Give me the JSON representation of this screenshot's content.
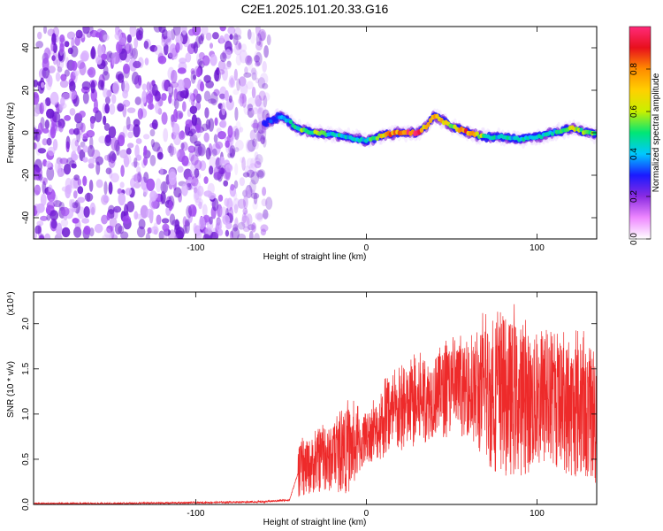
{
  "figure_title": "C2E1.2025.101.20.33.G16",
  "colors": {
    "snr_line": "#ee2a2a",
    "noise_purple": "#7a1fd6",
    "colormap": [
      "#ffffff",
      "#ee88ff",
      "#8a2be2",
      "#1a1aff",
      "#00c8ff",
      "#00e676",
      "#c8f000",
      "#ffd000",
      "#ff8c00",
      "#e8101c",
      "#ff2a7a"
    ]
  },
  "chart_data": [
    {
      "type": "heatmap",
      "title": "C2E1.2025.101.20.33.G16",
      "xlabel": "Height of straight line (km)",
      "ylabel": "Frequency (Hz)",
      "xlim": [
        -195,
        135
      ],
      "ylim": [
        -50,
        50
      ],
      "xticks": [
        -100,
        0,
        100
      ],
      "xtick_labels": [
        "-100",
        "0",
        "100"
      ],
      "yticks": [
        -40,
        -20,
        0,
        20,
        40
      ],
      "ytick_labels": [
        "-40",
        "-20",
        "0",
        "20",
        "40"
      ],
      "grid": false,
      "noise_region_x": [
        -195,
        -60
      ],
      "signal_ridge": {
        "x": [
          -60,
          -50,
          -40,
          -30,
          -20,
          -10,
          0,
          10,
          20,
          30,
          35,
          40,
          50,
          60,
          70,
          80,
          90,
          100,
          110,
          120,
          130,
          135
        ],
        "y": [
          4,
          8,
          2,
          0,
          -1,
          -2,
          -4,
          -1,
          0,
          0,
          3,
          8,
          3,
          0,
          -2,
          -2,
          -3,
          -2,
          0,
          2,
          0,
          -1
        ],
        "peak_normalized_amplitude": [
          0.3,
          0.4,
          0.55,
          0.6,
          0.5,
          0.45,
          0.45,
          0.7,
          0.95,
          0.95,
          0.7,
          0.8,
          0.65,
          0.9,
          0.5,
          0.45,
          0.5,
          0.45,
          0.5,
          0.6,
          0.65,
          0.55
        ]
      },
      "colorbar": {
        "label": "Normalized spectral amplitude",
        "range": [
          0.0,
          1.0
        ],
        "ticks": [
          0.0,
          0.2,
          0.4,
          0.6,
          0.8
        ],
        "tick_labels": [
          "0.0",
          "0.2",
          "0.4",
          "0.6",
          "0.8"
        ]
      }
    },
    {
      "type": "line",
      "xlabel": "Height of straight line (km)",
      "ylabel": "SNR (10 * v/v)",
      "y_multiplier_label": "(x10⁴)",
      "xlim": [
        -195,
        135
      ],
      "ylim": [
        0,
        2.35
      ],
      "xticks": [
        -100,
        0,
        100
      ],
      "xtick_labels": [
        "-100",
        "0",
        "100"
      ],
      "yticks": [
        0.0,
        0.5,
        1.0,
        1.5,
        2.0
      ],
      "ytick_labels": [
        "0.0",
        "0.5",
        "1.0",
        "1.5",
        "2.0"
      ],
      "grid": false,
      "series": [
        {
          "color": "#ee2a2a",
          "x_envelope": [
            -195,
            -150,
            -100,
            -60,
            -45,
            -40,
            -30,
            -20,
            -10,
            0,
            10,
            20,
            30,
            40,
            50,
            60,
            70,
            80,
            90,
            100,
            110,
            120,
            130,
            135
          ],
          "y_envelope_mean": [
            0.01,
            0.01,
            0.02,
            0.03,
            0.05,
            0.35,
            0.45,
            0.5,
            0.6,
            0.7,
            0.9,
            1.0,
            1.1,
            1.2,
            1.25,
            1.25,
            1.2,
            1.2,
            1.15,
            1.1,
            1.1,
            1.05,
            1.0,
            1.0
          ],
          "y_envelope_max": [
            0.02,
            0.02,
            0.03,
            0.04,
            0.1,
            0.7,
            0.85,
            0.95,
            1.2,
            1.0,
            1.4,
            1.55,
            1.7,
            1.75,
            1.9,
            1.85,
            2.2,
            2.3,
            2.2,
            2.0,
            1.95,
            2.0,
            1.9,
            2.05
          ]
        }
      ]
    }
  ]
}
